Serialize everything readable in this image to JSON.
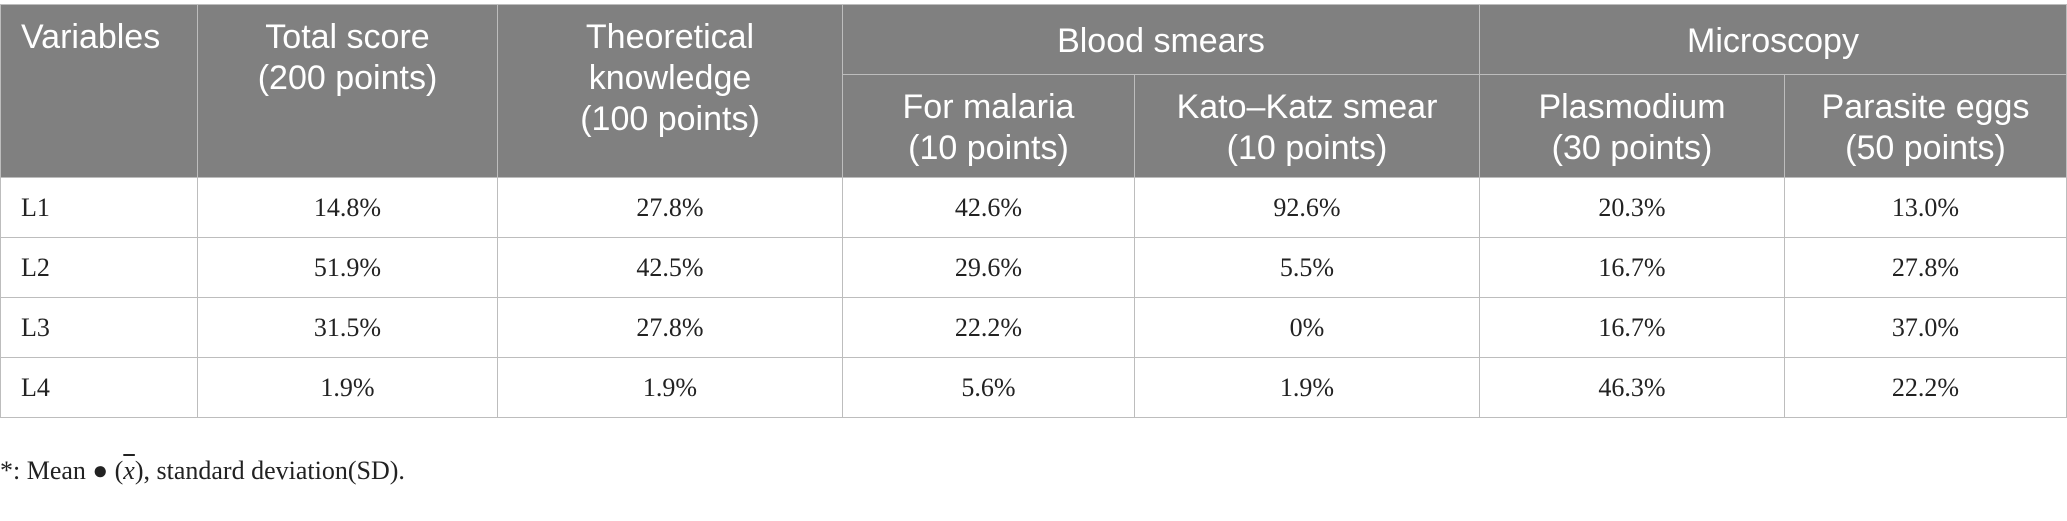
{
  "headers": {
    "variables": "Variables",
    "total_score": [
      "Total score",
      "(200 points)"
    ],
    "theoretical": [
      "Theoretical",
      "knowledge",
      "(100 points)"
    ],
    "blood_smears": "Blood smears",
    "microscopy": "Microscopy",
    "malaria": [
      "For malaria",
      "(10 points)"
    ],
    "kato_katz": [
      "Kato–Katz smear",
      "(10 points)"
    ],
    "plasmodium": [
      "Plasmodium",
      "(30 points)"
    ],
    "parasite_eggs": [
      "Parasite eggs",
      "(50 points)"
    ]
  },
  "rows": [
    [
      "L1",
      "14.8%",
      "27.8%",
      "42.6%",
      "92.6%",
      "20.3%",
      "13.0%"
    ],
    [
      "L2",
      "51.9%",
      "42.5%",
      "29.6%",
      "5.5%",
      "16.7%",
      "27.8%"
    ],
    [
      "L3",
      "31.5%",
      "27.8%",
      "22.2%",
      "0%",
      "16.7%",
      "37.0%"
    ],
    [
      "L4",
      "1.9%",
      "1.9%",
      "5.6%",
      "1.9%",
      "46.3%",
      "22.2%"
    ]
  ],
  "footnote": {
    "prefix": "*: Mean ● (",
    "symbol": "x",
    "suffix": "), standard deviation(SD)."
  }
}
